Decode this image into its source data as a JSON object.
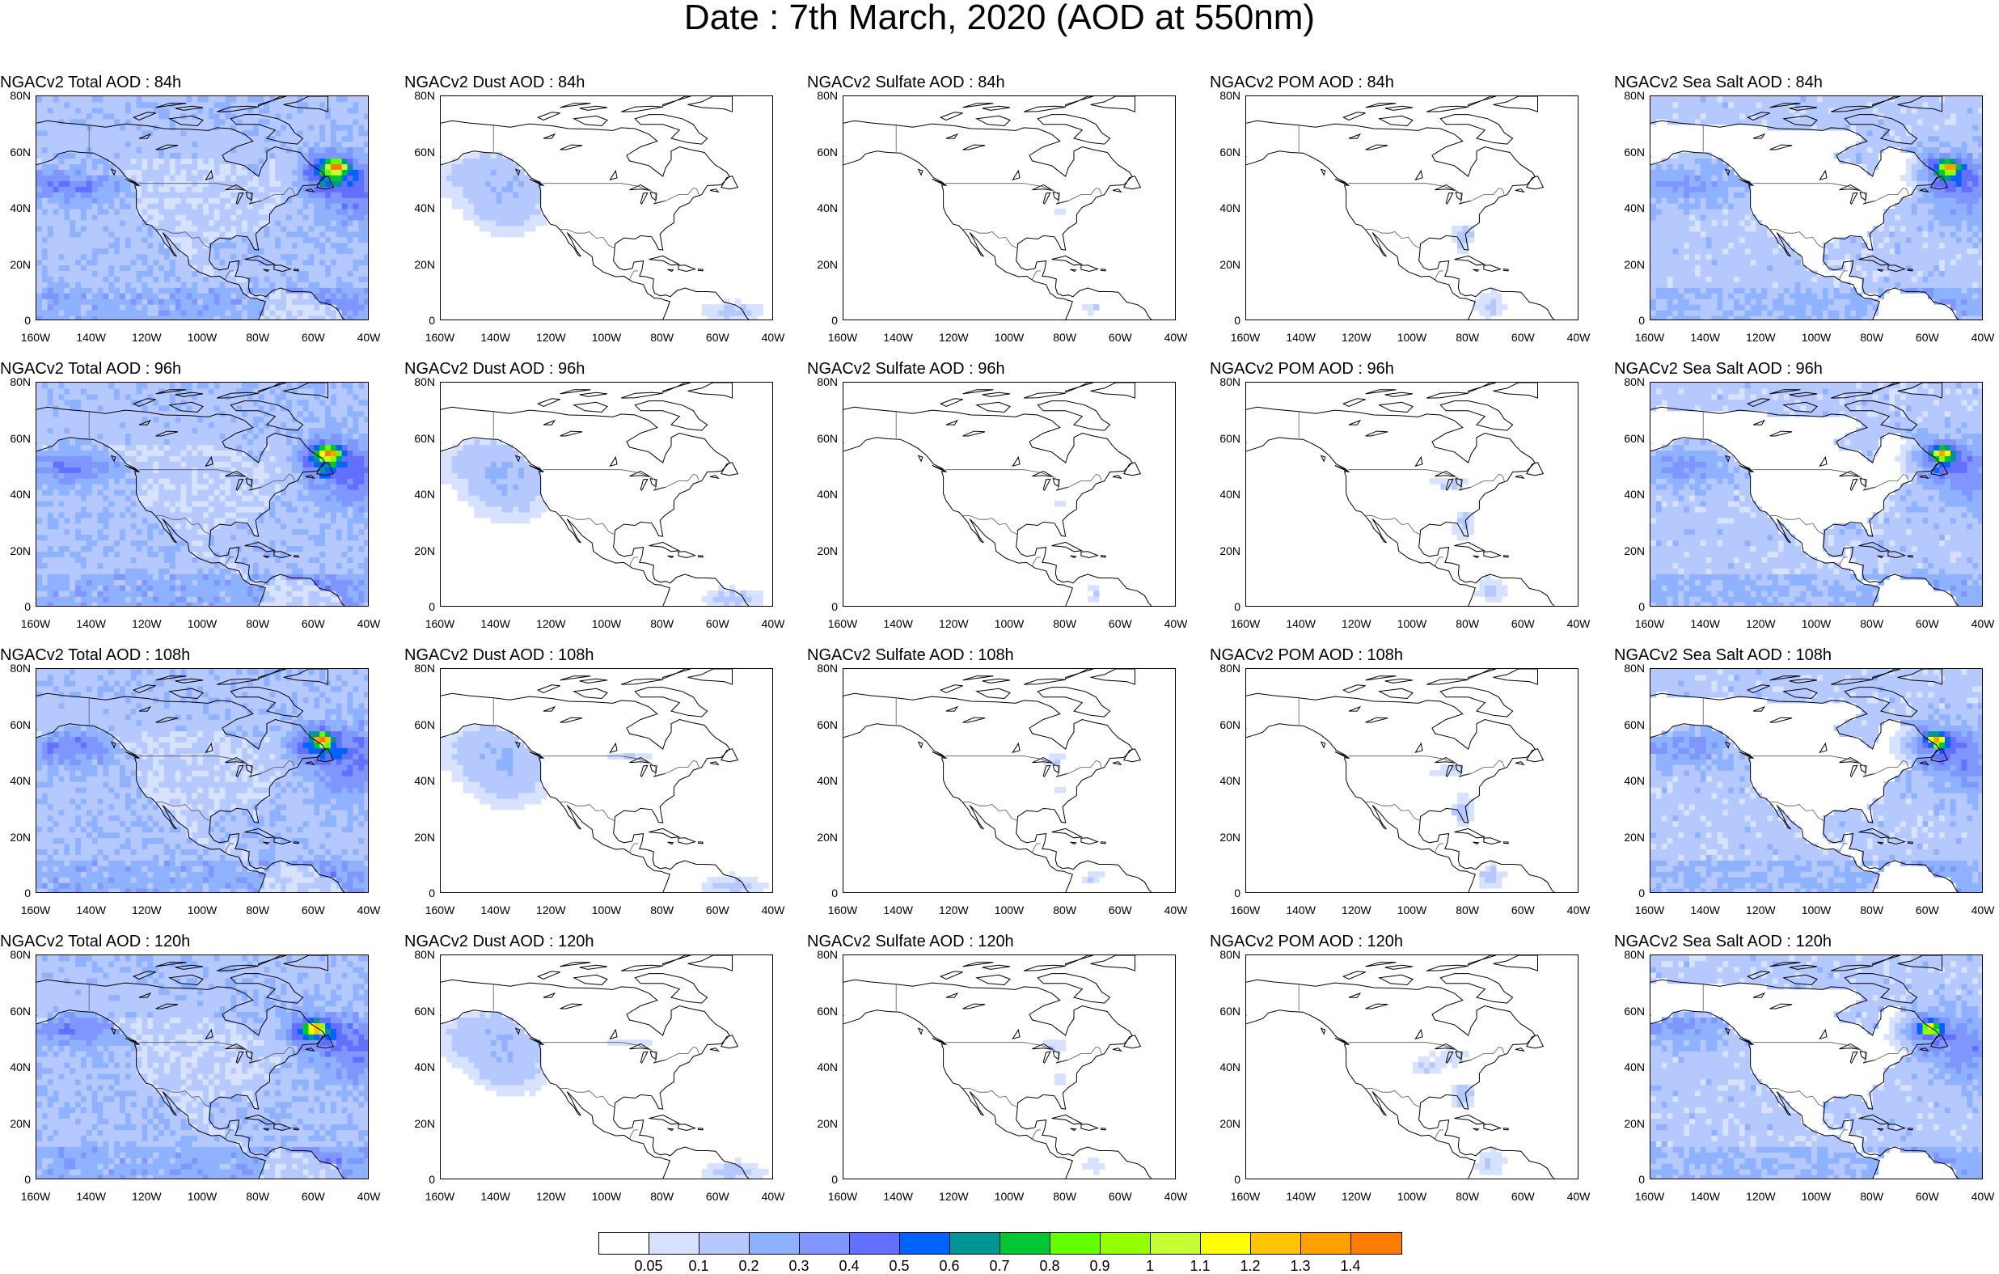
{
  "title": "Date : 7th March, 2020 (AOD at 550nm)",
  "x_ticks": [
    "160W",
    "140W",
    "120W",
    "100W",
    "80W",
    "60W",
    "40W"
  ],
  "y_ticks": [
    "80N",
    "60N",
    "40N",
    "20N",
    "0"
  ],
  "columns": [
    {
      "species": "Total",
      "titles": [
        "NGACv2 Total AOD : 84h",
        "NGACv2 Total AOD : 96h",
        "NGACv2 Total AOD : 108h",
        "NGACv2 Total AOD : 120h"
      ]
    },
    {
      "species": "Dust",
      "titles": [
        "NGACv2 Dust AOD : 84h",
        "NGACv2 Dust AOD : 96h",
        "NGACv2 Dust AOD : 108h",
        "NGACv2 Dust AOD : 120h"
      ]
    },
    {
      "species": "Sulfate",
      "titles": [
        "NGACv2 Sulfate AOD : 84h",
        "NGACv2 Sulfate AOD : 96h",
        "NGACv2 Sulfate AOD : 108h",
        "NGACv2 Sulfate AOD : 120h"
      ]
    },
    {
      "species": "POM",
      "titles": [
        "NGACv2 POM AOD : 84h",
        "NGACv2 POM AOD : 96h",
        "NGACv2 POM AOD : 108h",
        "NGACv2 POM AOD : 120h"
      ]
    },
    {
      "species": "Sea Salt",
      "titles": [
        "NGACv2 Sea Salt AOD : 84h",
        "NGACv2 Sea Salt AOD : 96h",
        "NGACv2 Sea Salt AOD : 108h",
        "NGACv2 Sea Salt  AOD : 120h"
      ]
    }
  ],
  "colorbar": {
    "labels": [
      "0.05",
      "0.1",
      "0.2",
      "0.3",
      "0.4",
      "0.5",
      "0.6",
      "0.7",
      "0.8",
      "0.9",
      "1",
      "1.1",
      "1.2",
      "1.3",
      "1.4"
    ],
    "colors": [
      "#ffffff",
      "#d6e2ff",
      "#b5c9ff",
      "#8eb2ff",
      "#7f96ff",
      "#6370ff",
      "#0063ff",
      "#009696",
      "#00c633",
      "#63ff00",
      "#96ff00",
      "#c6ff33",
      "#ffff00",
      "#ffc600",
      "#ffa000",
      "#ff7c00",
      "#ff1900"
    ]
  },
  "map_colors": {
    "coast": "#000000",
    "border": "#555555"
  }
}
